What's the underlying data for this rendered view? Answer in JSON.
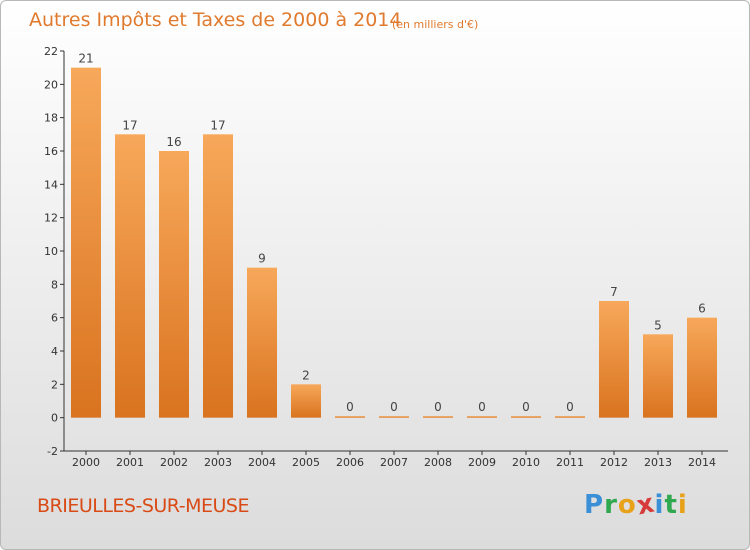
{
  "title": "Autres Impôts et Taxes de 2000 à 2014",
  "unit": "(en milliers d'€)",
  "commune": "BRIEULLES-SUR-MEUSE",
  "logo": {
    "letters": [
      "P",
      "r",
      "o",
      "x",
      "i",
      "t",
      "i"
    ],
    "colors": [
      "#3a8fd6",
      "#2fa84f",
      "#e8a21a",
      "#d63a3a",
      "#3a8fd6",
      "#2fa84f",
      "#e8a21a"
    ]
  },
  "colors": {
    "bar_top": "#f7a85a",
    "bar_bottom": "#d9731f",
    "title": "#e07a2e",
    "commune": "#d94b16"
  },
  "chart_data": {
    "type": "bar",
    "categories": [
      "2000",
      "2001",
      "2002",
      "2003",
      "2004",
      "2005",
      "2006",
      "2007",
      "2008",
      "2009",
      "2010",
      "2011",
      "2012",
      "2013",
      "2014"
    ],
    "values": [
      21,
      17,
      16,
      17,
      9,
      2,
      0,
      0,
      0,
      0,
      0,
      0,
      7,
      5,
      6
    ],
    "title": "Autres Impôts et Taxes de 2000 à 2014",
    "xlabel": "",
    "ylabel": "",
    "ylim": [
      -2,
      22
    ],
    "yticks": [
      -2,
      0,
      2,
      4,
      6,
      8,
      10,
      12,
      14,
      16,
      18,
      20,
      22
    ],
    "grid": false,
    "legend": "none"
  }
}
